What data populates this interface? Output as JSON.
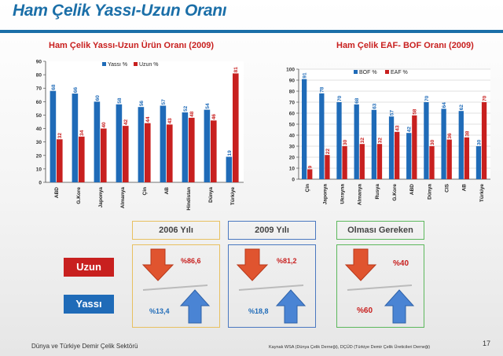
{
  "title": "Ham Çelik Yassı-Uzun Oranı",
  "chart_data": [
    {
      "type": "bar",
      "title": "Ham Çelik  Yassı-Uzun Ürün Oranı (2009)",
      "categories": [
        "ABD",
        "G.Kore",
        "Japonya",
        "Almanya",
        "Çin",
        "AB",
        "Hindistan",
        "Dünya",
        "Türkiye"
      ],
      "series": [
        {
          "name": "Yassı  %",
          "color": "#1f6bb8",
          "values": [
            68,
            66,
            60,
            58,
            56,
            57,
            52,
            54,
            19
          ]
        },
        {
          "name": "Uzun %",
          "color": "#c8201f",
          "values": [
            32,
            34,
            40,
            42,
            44,
            43,
            48,
            46,
            81
          ]
        }
      ],
      "ylim": [
        0,
        90
      ],
      "yticks": [
        0,
        10,
        20,
        30,
        40,
        50,
        60,
        70,
        80,
        90
      ],
      "grid": false,
      "legend": "top-left"
    },
    {
      "type": "bar",
      "title": "Ham Çelik  EAF- BOF Oranı (2009)",
      "categories": [
        "Çin",
        "Japonya",
        "Ukrayna",
        "Almanya",
        "Rusya",
        "G.Kore",
        "ABD",
        "Dünya",
        "CIS",
        "AB",
        "Türkiye"
      ],
      "series": [
        {
          "name": "BOF %",
          "color": "#1f6bb8",
          "values": [
            91,
            78,
            70,
            68,
            63,
            57,
            42,
            70,
            64,
            62,
            30
          ]
        },
        {
          "name": "EAF %",
          "color": "#c8201f",
          "values": [
            9,
            22,
            30,
            32,
            32,
            43,
            58,
            30,
            36,
            38,
            70
          ]
        }
      ],
      "ylim": [
        0,
        100
      ],
      "yticks": [
        0,
        10,
        20,
        30,
        40,
        50,
        60,
        70,
        80,
        90,
        100
      ],
      "grid": true,
      "legend": "top-left"
    }
  ],
  "comparison": {
    "uzun_label": "Uzun",
    "yassi_label": "Yassı",
    "uzun_color": "#c8201f",
    "yassi_color": "#1f6bb8",
    "boxes": [
      {
        "label": "2006  Yılı",
        "border": "#e8c060",
        "uzun_pct": "%86,6",
        "yassi_pct": "%13,4"
      },
      {
        "label": "2009  Yılı",
        "border": "#4a78c0",
        "uzun_pct": "%81,2",
        "yassi_pct": "%18,8"
      },
      {
        "label": "Olması Gereken",
        "border": "#5cb85c",
        "uzun_pct": "%40",
        "yassi_pct": "%60"
      }
    ]
  },
  "footer": {
    "left": "Dünya ve Türkiye Demir Çelik Sektörü",
    "source": "Kaynak WSA  (Dünya Çelik Derneği), DÇÜD (Türkiye Demir Çelik Üreticileri Derneği)",
    "page": "17"
  }
}
